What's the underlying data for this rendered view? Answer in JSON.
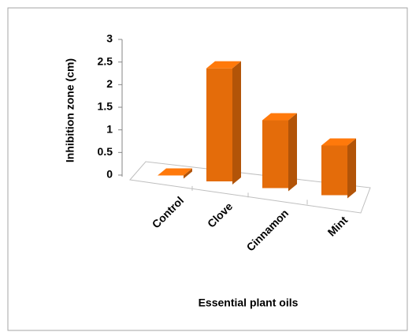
{
  "chart_data": {
    "type": "bar3d",
    "x_label": "Essential plant oils",
    "y_label": "Inhibition zone (cm)",
    "categories": [
      "Control",
      "Clove",
      "Cinnamon",
      "Mint"
    ],
    "values": [
      0,
      2.5,
      1.5,
      1.1
    ],
    "color": "#e46c0a",
    "ylim": [
      0,
      3
    ],
    "yticks": [
      0,
      0.5,
      1,
      1.5,
      2,
      2.5,
      3
    ]
  }
}
